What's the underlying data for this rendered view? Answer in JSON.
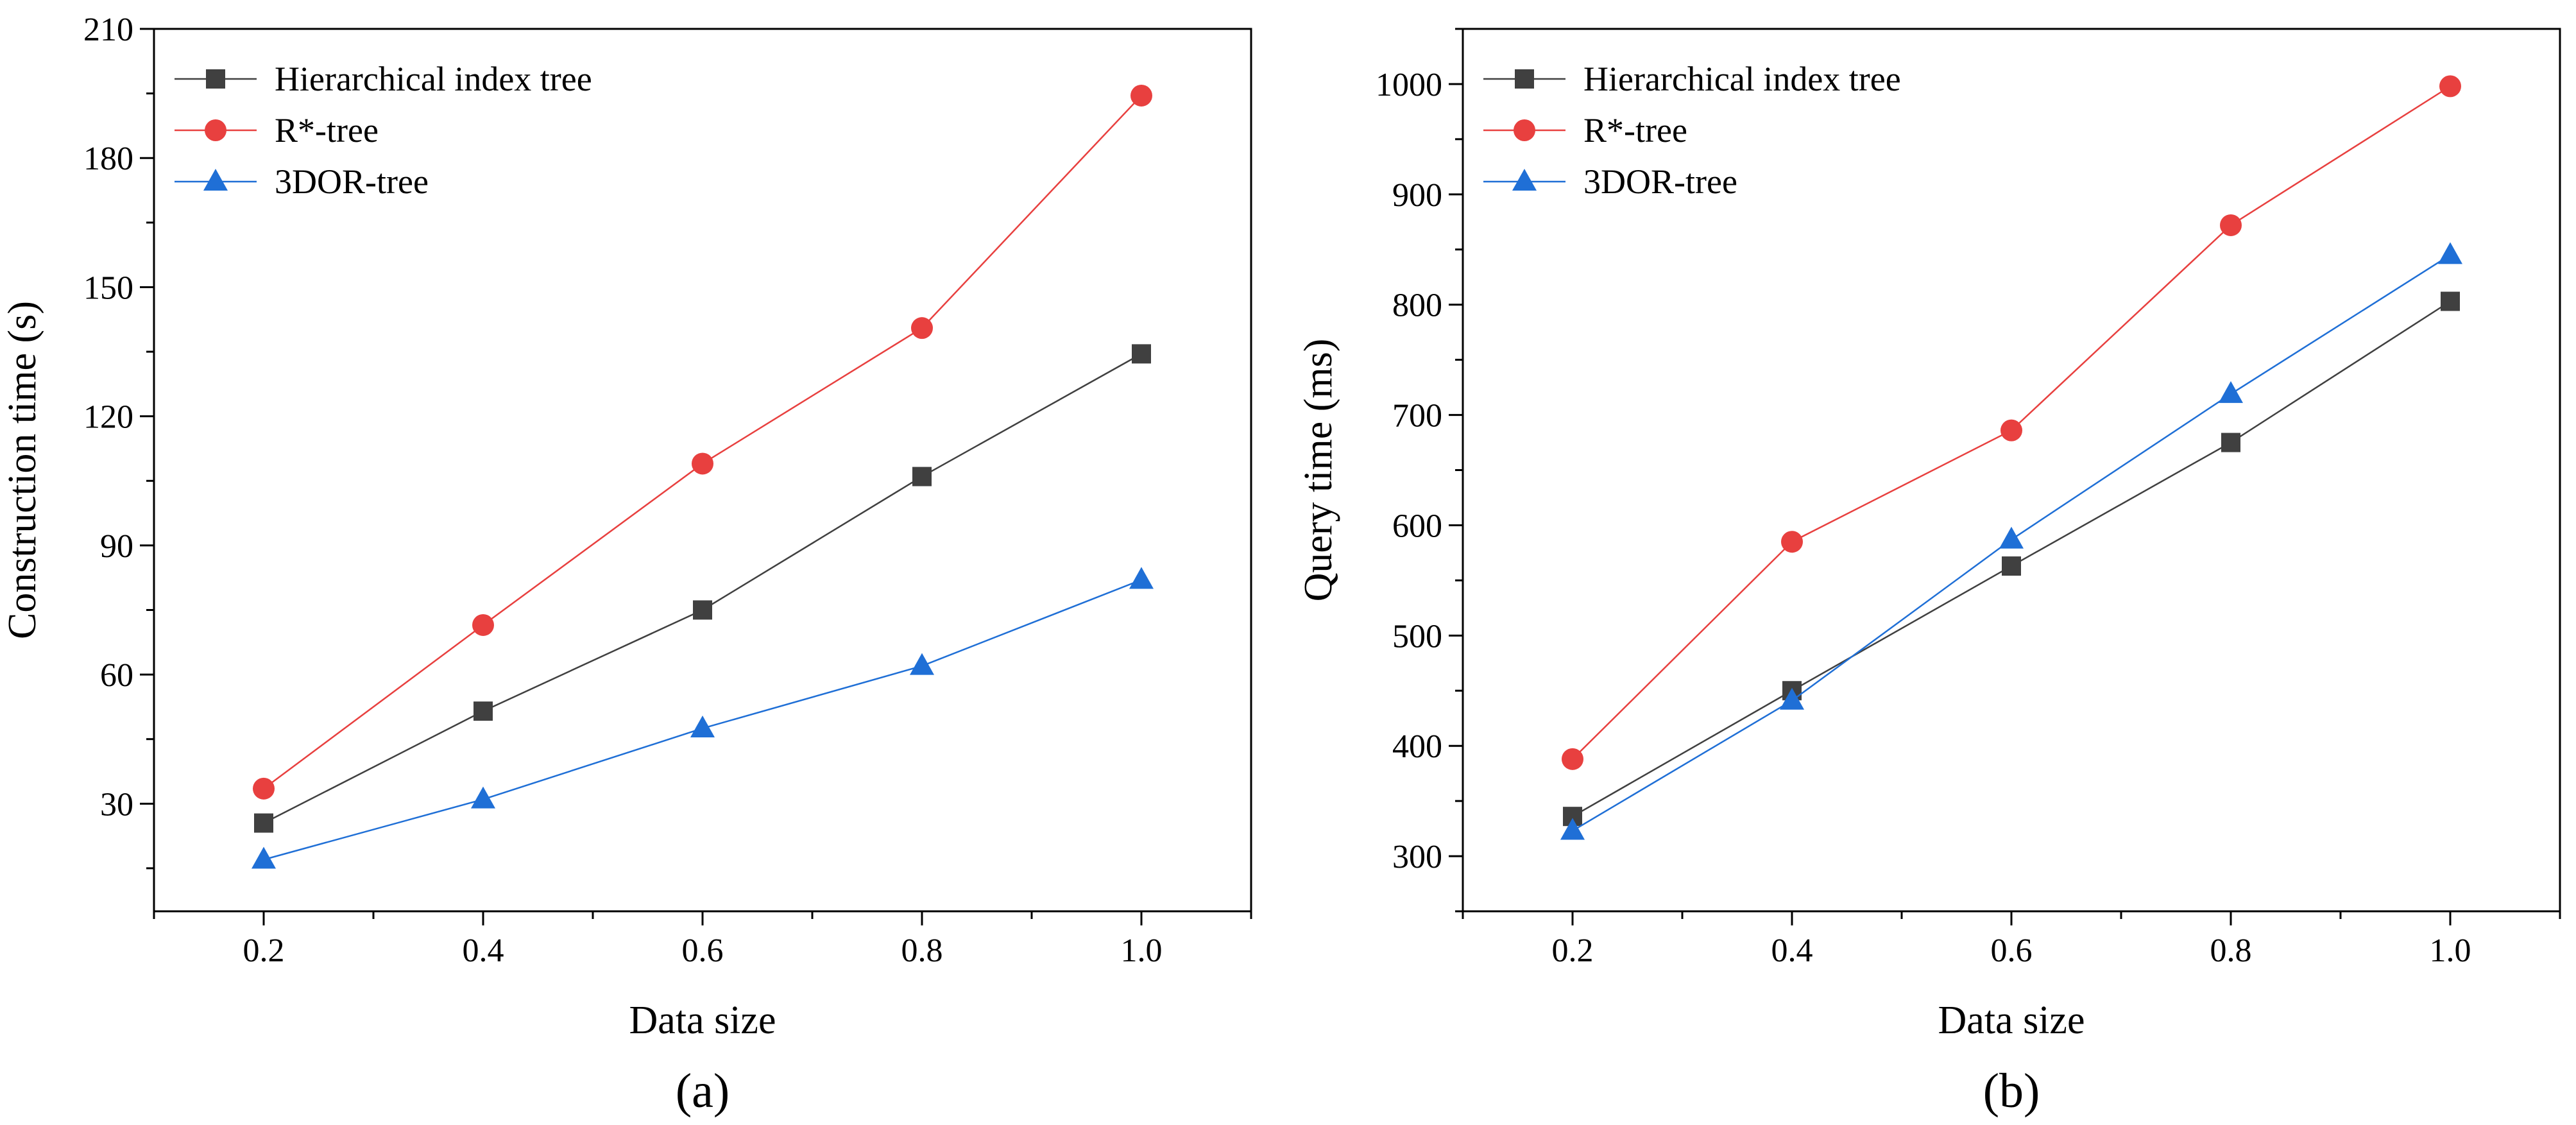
{
  "chart_data": [
    {
      "type": "line",
      "caption": "(a)",
      "xlabel": "Data size",
      "ylabel": "Construction time (s)",
      "xlim": [
        0.1,
        1.1
      ],
      "ylim": [
        5,
        210
      ],
      "xticks": [
        0.2,
        0.4,
        0.6,
        0.8,
        1.0
      ],
      "xtick_labels": [
        "0.2",
        "0.4",
        "0.6",
        "0.8",
        "1.0"
      ],
      "yticks": [
        30,
        60,
        90,
        120,
        150,
        180,
        210
      ],
      "ytick_labels": [
        "30",
        "60",
        "90",
        "120",
        "150",
        "180",
        "210"
      ],
      "legend_position": "top-left",
      "x": [
        0.2,
        0.4,
        0.6,
        0.8,
        1.0
      ],
      "series": [
        {
          "name": "Hierarchical index tree",
          "color": "#404040",
          "marker": "square",
          "values": [
            25.5,
            51.5,
            75,
            106,
            134.5
          ]
        },
        {
          "name": "R*-tree",
          "color": "#e8403f",
          "marker": "circle",
          "values": [
            33.5,
            71.5,
            109,
            140.5,
            194.5
          ]
        },
        {
          "name": "3DOR-tree",
          "color": "#1f6fd6",
          "marker": "triangle",
          "values": [
            17,
            31,
            47.5,
            62,
            82
          ]
        }
      ]
    },
    {
      "type": "line",
      "caption": "(b)",
      "xlabel": "Data size",
      "ylabel": "Query time (ms)",
      "xlim": [
        0.1,
        1.1
      ],
      "ylim": [
        250,
        1050
      ],
      "xticks": [
        0.2,
        0.4,
        0.6,
        0.8,
        1.0
      ],
      "xtick_labels": [
        "0.2",
        "0.4",
        "0.6",
        "0.8",
        "1.0"
      ],
      "yticks": [
        300,
        400,
        500,
        600,
        700,
        800,
        900,
        1000
      ],
      "ytick_labels": [
        "300",
        "400",
        "500",
        "600",
        "700",
        "800",
        "900",
        "1000"
      ],
      "legend_position": "top-left",
      "x": [
        0.2,
        0.4,
        0.6,
        0.8,
        1.0
      ],
      "series": [
        {
          "name": "Hierarchical index tree",
          "color": "#404040",
          "marker": "square",
          "values": [
            336,
            450,
            563,
            675,
            803
          ]
        },
        {
          "name": "R*-tree",
          "color": "#e8403f",
          "marker": "circle",
          "values": [
            388,
            585,
            686,
            872,
            998
          ]
        },
        {
          "name": "3DOR-tree",
          "color": "#1f6fd6",
          "marker": "triangle",
          "values": [
            323,
            441,
            587,
            719,
            845
          ]
        }
      ]
    }
  ]
}
